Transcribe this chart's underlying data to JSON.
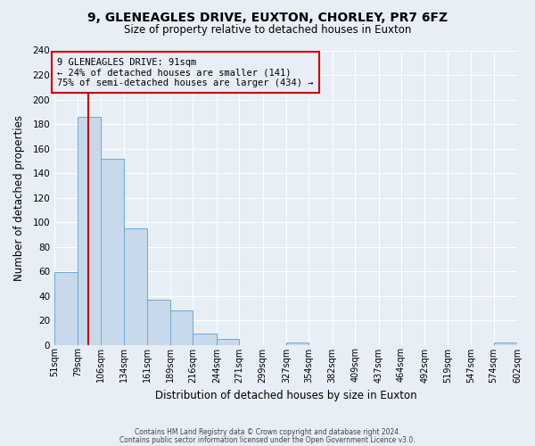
{
  "title_line1": "9, GLENEAGLES DRIVE, EUXTON, CHORLEY, PR7 6FZ",
  "title_line2": "Size of property relative to detached houses in Euxton",
  "xlabel": "Distribution of detached houses by size in Euxton",
  "ylabel": "Number of detached properties",
  "bin_edges": [
    51,
    79,
    106,
    134,
    161,
    189,
    216,
    244,
    271,
    299,
    327,
    354,
    382,
    409,
    437,
    464,
    492,
    519,
    547,
    574,
    602
  ],
  "counts": [
    59,
    186,
    152,
    95,
    37,
    28,
    9,
    5,
    0,
    0,
    2,
    0,
    0,
    0,
    0,
    0,
    0,
    0,
    0,
    2
  ],
  "bar_facecolor": "#c8d9ec",
  "bar_edgecolor": "#6aaad4",
  "vline_x": 91,
  "vline_color": "#cc0000",
  "annotation_box_edgecolor": "#cc0000",
  "annotation_line1": "9 GLENEAGLES DRIVE: 91sqm",
  "annotation_line2": "← 24% of detached houses are smaller (141)",
  "annotation_line3": "75% of semi-detached houses are larger (434) →",
  "ylim": [
    0,
    240
  ],
  "yticks": [
    0,
    20,
    40,
    60,
    80,
    100,
    120,
    140,
    160,
    180,
    200,
    220,
    240
  ],
  "tick_labels": [
    "51sqm",
    "79sqm",
    "106sqm",
    "134sqm",
    "161sqm",
    "189sqm",
    "216sqm",
    "244sqm",
    "271sqm",
    "299sqm",
    "327sqm",
    "354sqm",
    "382sqm",
    "409sqm",
    "437sqm",
    "464sqm",
    "492sqm",
    "519sqm",
    "547sqm",
    "574sqm",
    "602sqm"
  ],
  "background_color": "#e8eef5",
  "grid_color": "#ffffff",
  "footer_line1": "Contains HM Land Registry data © Crown copyright and database right 2024.",
  "footer_line2": "Contains public sector information licensed under the Open Government Licence v3.0."
}
